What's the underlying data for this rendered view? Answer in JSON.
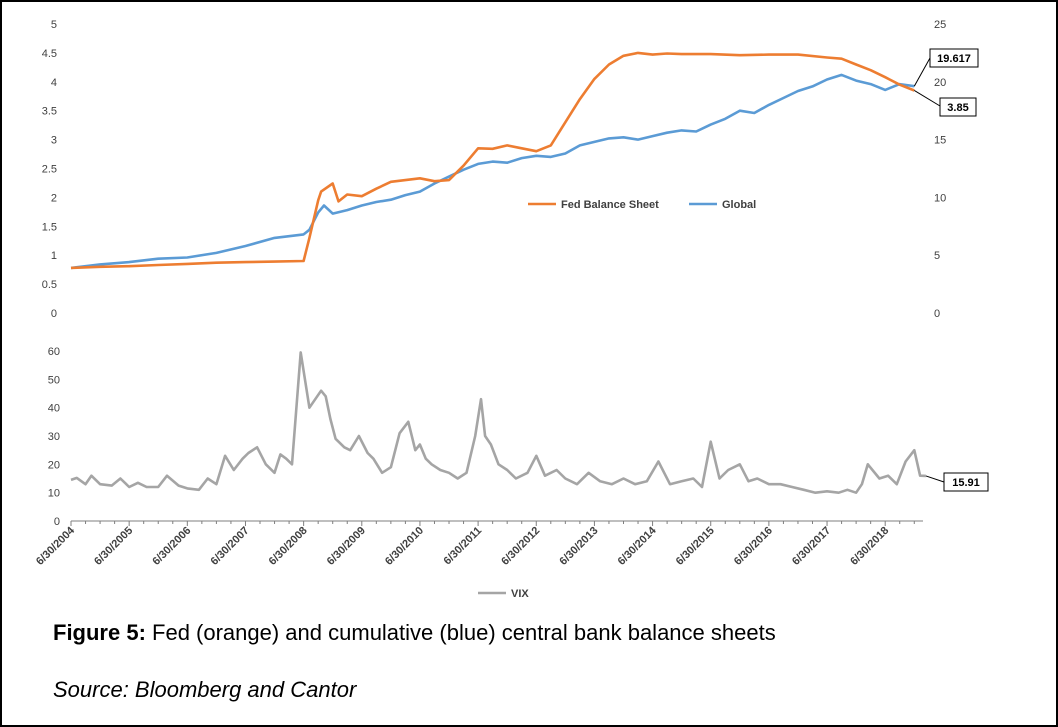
{
  "caption": {
    "label": "Figure 5:",
    "text": " Fed (orange) and cumulative (blue) central bank balance sheets"
  },
  "source": "Source: Bloomberg and Cantor",
  "colors": {
    "fed": "#ED7D31",
    "global": "#5B9BD5",
    "vix": "#A5A5A5",
    "axis": "#404040"
  },
  "chart_data": [
    {
      "type": "line",
      "title": "",
      "y_left": {
        "min": 0,
        "max": 5,
        "ticks": [
          "0",
          "0.5",
          "1",
          "1.5",
          "2",
          "2.5",
          "3",
          "3.5",
          "4",
          "4.5",
          "5"
        ]
      },
      "y_right": {
        "min": 0,
        "max": 25,
        "ticks": [
          "0",
          "5",
          "10",
          "15",
          "20",
          "25"
        ]
      },
      "legend": {
        "position": "center-right",
        "entries": [
          "Fed Balance Sheet",
          "Global"
        ]
      },
      "series": [
        {
          "name": "Fed Balance Sheet",
          "axis": "left",
          "x": [
            2004.5,
            2005.0,
            2005.5,
            2006.0,
            2006.5,
            2007.0,
            2007.5,
            2008.0,
            2008.5,
            2008.6,
            2008.75,
            2008.8,
            2009.0,
            2009.1,
            2009.25,
            2009.5,
            2009.75,
            2010.0,
            2010.25,
            2010.5,
            2010.75,
            2011.0,
            2011.25,
            2011.5,
            2011.75,
            2012.0,
            2012.25,
            2012.5,
            2012.75,
            2013.0,
            2013.25,
            2013.5,
            2013.75,
            2014.0,
            2014.25,
            2014.5,
            2014.75,
            2015.0,
            2015.5,
            2016.0,
            2016.5,
            2017.0,
            2017.5,
            2017.75,
            2018.0,
            2018.25,
            2018.5,
            2018.75,
            2019.0
          ],
          "values": [
            0.78,
            0.8,
            0.81,
            0.83,
            0.85,
            0.87,
            0.88,
            0.89,
            0.9,
            1.3,
            1.95,
            2.1,
            2.24,
            1.93,
            2.05,
            2.02,
            2.15,
            2.27,
            2.3,
            2.33,
            2.28,
            2.3,
            2.55,
            2.85,
            2.84,
            2.9,
            2.85,
            2.8,
            2.9,
            3.3,
            3.7,
            4.05,
            4.3,
            4.45,
            4.5,
            4.47,
            4.49,
            4.48,
            4.48,
            4.46,
            4.47,
            4.47,
            4.42,
            4.4,
            4.3,
            4.2,
            4.08,
            3.95,
            3.85
          ]
        },
        {
          "name": "Global",
          "axis": "right",
          "x": [
            2004.5,
            2005.0,
            2005.5,
            2006.0,
            2006.5,
            2007.0,
            2007.5,
            2008.0,
            2008.5,
            2008.6,
            2008.75,
            2008.85,
            2009.0,
            2009.25,
            2009.5,
            2009.75,
            2010.0,
            2010.25,
            2010.5,
            2010.75,
            2011.0,
            2011.25,
            2011.5,
            2011.75,
            2012.0,
            2012.25,
            2012.5,
            2012.75,
            2013.0,
            2013.25,
            2013.5,
            2013.75,
            2014.0,
            2014.25,
            2014.5,
            2014.75,
            2015.0,
            2015.25,
            2015.5,
            2015.75,
            2016.0,
            2016.25,
            2016.5,
            2016.75,
            2017.0,
            2017.25,
            2017.5,
            2017.75,
            2018.0,
            2018.25,
            2018.5,
            2018.75,
            2019.0
          ],
          "values": [
            3.9,
            4.2,
            4.4,
            4.7,
            4.8,
            5.2,
            5.8,
            6.5,
            6.8,
            7.2,
            8.7,
            9.3,
            8.6,
            8.9,
            9.3,
            9.6,
            9.8,
            10.2,
            10.5,
            11.2,
            11.8,
            12.4,
            12.9,
            13.1,
            13.0,
            13.4,
            13.6,
            13.5,
            13.8,
            14.5,
            14.8,
            15.1,
            15.2,
            15.0,
            15.3,
            15.6,
            15.8,
            15.7,
            16.3,
            16.8,
            17.5,
            17.3,
            18.0,
            18.6,
            19.2,
            19.6,
            20.2,
            20.6,
            20.1,
            19.8,
            19.3,
            19.8,
            19.617
          ]
        }
      ],
      "annotations": [
        {
          "series": "Global",
          "label": "19.617"
        },
        {
          "series": "Fed Balance Sheet",
          "label": "3.85"
        }
      ]
    },
    {
      "type": "line",
      "title": "",
      "y": {
        "min": 0,
        "max": 60,
        "ticks": [
          "0",
          "10",
          "20",
          "30",
          "40",
          "50",
          "60"
        ]
      },
      "x_ticks": [
        "6/30/2004",
        "6/30/2005",
        "6/30/2006",
        "6/30/2007",
        "6/30/2008",
        "6/30/2009",
        "6/30/2010",
        "6/30/2011",
        "6/30/2012",
        "6/30/2013",
        "6/30/2014",
        "6/30/2015",
        "6/30/2016",
        "6/30/2017",
        "6/30/2018"
      ],
      "legend": {
        "position": "bottom",
        "entries": [
          "VIX"
        ]
      },
      "series": [
        {
          "name": "VIX",
          "x": [
            2004.5,
            2004.6,
            2004.75,
            2004.85,
            2005.0,
            2005.2,
            2005.35,
            2005.5,
            2005.65,
            2005.8,
            2006.0,
            2006.15,
            2006.35,
            2006.5,
            2006.7,
            2006.85,
            2007.0,
            2007.15,
            2007.3,
            2007.45,
            2007.55,
            2007.7,
            2007.85,
            2008.0,
            2008.1,
            2008.2,
            2008.3,
            2008.45,
            2008.6,
            2008.8,
            2008.88,
            2008.96,
            2009.05,
            2009.2,
            2009.3,
            2009.45,
            2009.6,
            2009.7,
            2009.85,
            2010.0,
            2010.15,
            2010.3,
            2010.42,
            2010.5,
            2010.6,
            2010.7,
            2010.85,
            2011.0,
            2011.15,
            2011.3,
            2011.45,
            2011.55,
            2011.62,
            2011.72,
            2011.85,
            2012.0,
            2012.15,
            2012.35,
            2012.5,
            2012.65,
            2012.85,
            2013.0,
            2013.2,
            2013.4,
            2013.6,
            2013.8,
            2014.0,
            2014.2,
            2014.4,
            2014.6,
            2014.8,
            2015.0,
            2015.2,
            2015.35,
            2015.5,
            2015.65,
            2015.8,
            2016.0,
            2016.15,
            2016.3,
            2016.5,
            2016.7,
            2016.9,
            2017.1,
            2017.3,
            2017.5,
            2017.7,
            2017.85,
            2018.0,
            2018.1,
            2018.2,
            2018.4,
            2018.55,
            2018.7,
            2018.85,
            2019.0,
            2019.1,
            2019.2
          ],
          "values": [
            14.5,
            15.2,
            13.0,
            16.0,
            13.0,
            12.5,
            15.0,
            12.0,
            13.5,
            12.0,
            12.0,
            16.0,
            12.5,
            11.5,
            11.0,
            15.0,
            13.0,
            23.0,
            18.0,
            22.0,
            24.0,
            26.0,
            20.0,
            17.0,
            23.5,
            22.0,
            20.0,
            59.5,
            40.0,
            46.0,
            44.0,
            36.0,
            29.0,
            26.0,
            25.0,
            30.0,
            24.0,
            22.0,
            17.0,
            19.0,
            31.0,
            35.0,
            25.0,
            27.0,
            22.0,
            20.0,
            18.0,
            17.0,
            15.0,
            17.0,
            30.0,
            43.0,
            30.0,
            27.0,
            20.0,
            18.0,
            15.0,
            17.0,
            23.0,
            16.0,
            18.0,
            15.0,
            13.0,
            17.0,
            14.0,
            13.0,
            15.0,
            13.0,
            14.0,
            21.0,
            13.0,
            14.0,
            15.0,
            12.0,
            28.0,
            15.0,
            18.0,
            20.0,
            14.0,
            15.0,
            13.0,
            13.0,
            12.0,
            11.0,
            10.0,
            10.5,
            10.0,
            11.0,
            10.0,
            13.0,
            20.0,
            15.0,
            16.0,
            13.0,
            21.0,
            25.0,
            16.0,
            15.91
          ]
        }
      ],
      "annotations": [
        {
          "series": "VIX",
          "label": "15.91"
        }
      ]
    }
  ]
}
